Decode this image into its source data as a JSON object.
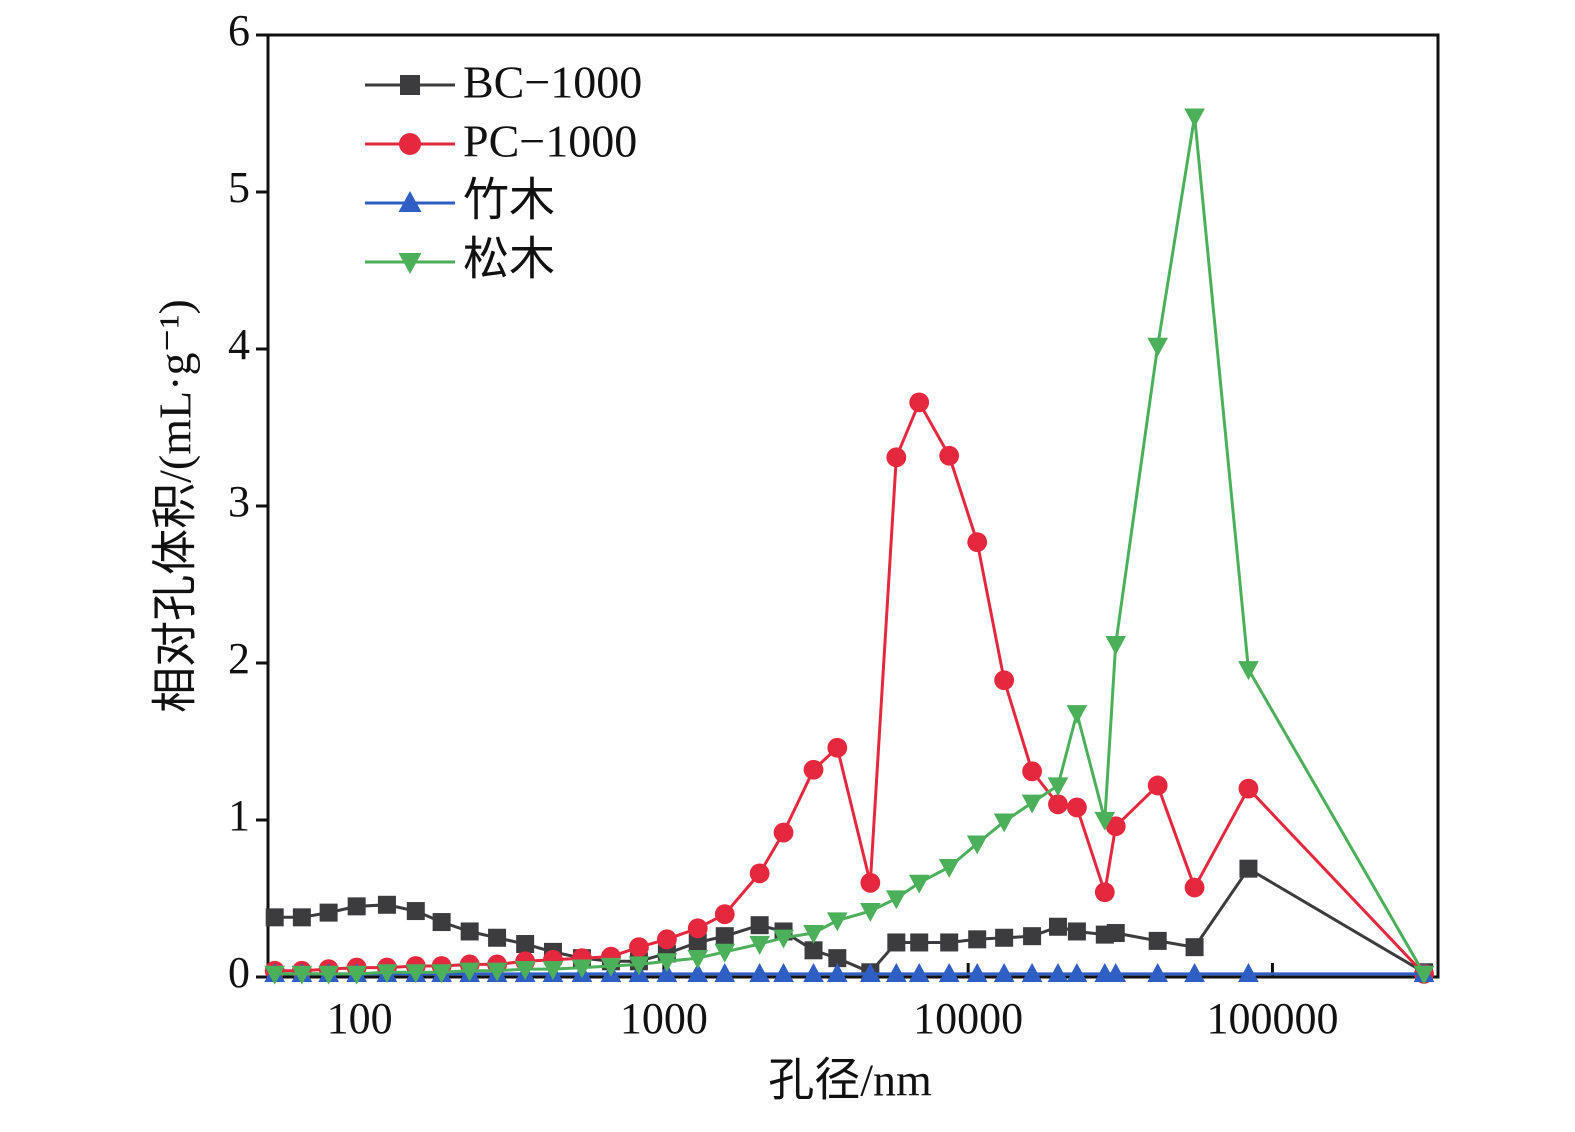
{
  "chart_data": {
    "type": "line",
    "xlabel": "孔径/nm",
    "ylabel": "相对孔体积/(mL·g⁻¹)",
    "xscale": "log",
    "xlim": [
      50,
      350000
    ],
    "ylim": [
      0,
      6
    ],
    "xticks": [
      100,
      1000,
      10000,
      100000
    ],
    "yticks": [
      0,
      1,
      2,
      3,
      4,
      5,
      6
    ],
    "legend": "upper left",
    "x": [
      52.6,
      64.6,
      79.1,
      97.8,
      123,
      153,
      186,
      230,
      283,
      350,
      432,
      538,
      670,
      828,
      1023,
      1292,
      1585,
      2064,
      2473,
      3103,
      3715,
      4770,
      5806,
      6904,
      8663,
      10708,
      13130,
      16220,
      19730,
      22770,
      28120,
      30550,
      41960,
      55470,
      83390,
      314800
    ],
    "series": [
      {
        "name": "BC−1000",
        "color": "#3c3c3e",
        "marker": "square",
        "values": [
          0.38,
          0.38,
          0.41,
          0.45,
          0.46,
          0.42,
          0.35,
          0.29,
          0.25,
          0.21,
          0.16,
          0.12,
          0.1,
          0.1,
          0.15,
          0.22,
          0.26,
          0.33,
          0.29,
          0.17,
          0.12,
          0.03,
          0.22,
          0.22,
          0.22,
          0.24,
          0.25,
          0.26,
          0.32,
          0.29,
          0.27,
          0.28,
          0.23,
          0.19,
          0.69,
          0.03
        ]
      },
      {
        "name": "PC−1000",
        "color": "#e5283e",
        "marker": "circle",
        "values": [
          0.04,
          0.04,
          0.05,
          0.06,
          0.06,
          0.07,
          0.07,
          0.08,
          0.08,
          0.1,
          0.11,
          0.12,
          0.13,
          0.19,
          0.24,
          0.31,
          0.4,
          0.66,
          0.92,
          1.32,
          1.46,
          0.6,
          3.31,
          3.66,
          3.32,
          2.77,
          1.89,
          1.31,
          1.1,
          1.08,
          0.54,
          0.96,
          1.22,
          0.57,
          1.2,
          0.02
        ]
      },
      {
        "name": "竹木",
        "color": "#2f5fc4",
        "marker": "triangle-up",
        "values": [
          0.02,
          0.02,
          0.02,
          0.02,
          0.02,
          0.02,
          0.02,
          0.02,
          0.02,
          0.02,
          0.02,
          0.02,
          0.02,
          0.02,
          0.02,
          0.02,
          0.02,
          0.02,
          0.02,
          0.02,
          0.02,
          0.02,
          0.02,
          0.02,
          0.02,
          0.02,
          0.02,
          0.02,
          0.02,
          0.02,
          0.02,
          0.02,
          0.02,
          0.02,
          0.02,
          0.02
        ]
      },
      {
        "name": "松木",
        "color": "#4caf5a",
        "marker": "triangle-down",
        "values": [
          0.02,
          0.02,
          0.02,
          0.02,
          0.03,
          0.03,
          0.03,
          0.04,
          0.04,
          0.05,
          0.05,
          0.06,
          0.07,
          0.08,
          0.1,
          0.12,
          0.16,
          0.21,
          0.25,
          0.28,
          0.36,
          0.42,
          0.5,
          0.6,
          0.7,
          0.85,
          0.99,
          1.11,
          1.22,
          1.68,
          1.0,
          2.12,
          4.02,
          5.48,
          1.96,
          0.02
        ]
      }
    ]
  }
}
